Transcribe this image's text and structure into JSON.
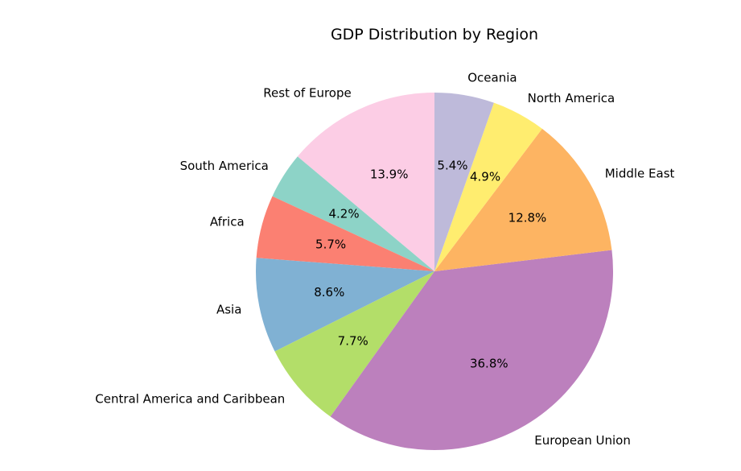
{
  "chart_data": {
    "type": "pie",
    "title": "GDP Distribution by Region",
    "start_angle_deg": 90,
    "direction": "counterclockwise",
    "slices": [
      {
        "label": "Rest of Europe",
        "value": 13.9,
        "pct_label": "13.9%",
        "color": "#fccde5"
      },
      {
        "label": "South America",
        "value": 4.2,
        "pct_label": "4.2%",
        "color": "#8dd3c7"
      },
      {
        "label": "Africa",
        "value": 5.7,
        "pct_label": "5.7%",
        "color": "#fb8072"
      },
      {
        "label": "Asia",
        "value": 8.6,
        "pct_label": "8.6%",
        "color": "#80b1d3"
      },
      {
        "label": "Central America and Caribbean",
        "value": 7.7,
        "pct_label": "7.7%",
        "color": "#b3de69"
      },
      {
        "label": "European Union",
        "value": 36.8,
        "pct_label": "36.8%",
        "color": "#bc80bd"
      },
      {
        "label": "Middle East",
        "value": 12.8,
        "pct_label": "12.8%",
        "color": "#fdb462"
      },
      {
        "label": "North America",
        "value": 4.9,
        "pct_label": "4.9%",
        "color": "#ffed6f"
      },
      {
        "label": "Oceania",
        "value": 5.4,
        "pct_label": "5.4%",
        "color": "#bebada"
      }
    ]
  }
}
